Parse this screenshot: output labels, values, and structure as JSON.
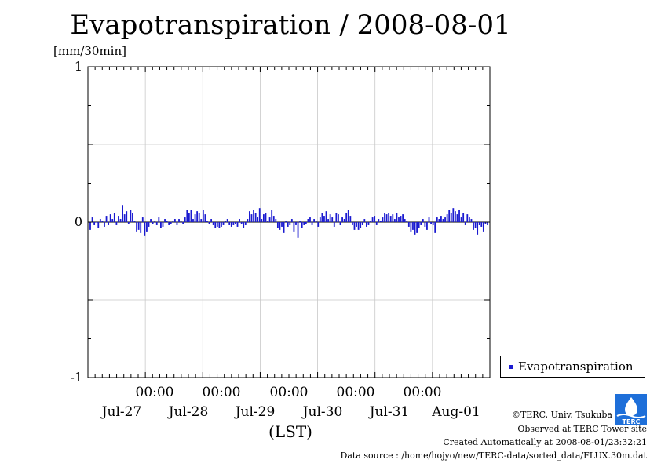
{
  "page": {
    "title": "Evapotranspiration / 2008-08-01",
    "unit": "[mm/30min]",
    "x_axis_note": "(LST)"
  },
  "chart_data": {
    "type": "bar",
    "title": "Evapotranspiration / 2008-08-01",
    "ylabel": "[mm/30min]",
    "xlabel": "(LST)",
    "ylim": [
      -1,
      1
    ],
    "yticks": [
      "1",
      "0",
      "-1"
    ],
    "xlim": [
      "2008-07-26T00:00",
      "2008-08-02T00:00"
    ],
    "time_ticks": [
      "00:00",
      "00:00",
      "00:00",
      "00:00",
      "00:00"
    ],
    "date_ticks": [
      "Jul-27",
      "Jul-28",
      "Jul-29",
      "Jul-30",
      "Jul-31",
      "Aug-01"
    ],
    "grid": true,
    "legend_position": "bottom-right outside",
    "series": [
      {
        "name": "Evapotranspiration",
        "color": "#1a1ad0",
        "values": [
          -0.05,
          0.03,
          -0.02,
          0.0,
          -0.04,
          0.02,
          0.01,
          -0.03,
          0.04,
          -0.02,
          0.05,
          0.02,
          0.06,
          -0.02,
          0.04,
          0.02,
          0.11,
          0.05,
          0.07,
          -0.01,
          0.08,
          0.06,
          0.01,
          -0.06,
          -0.05,
          -0.07,
          0.03,
          -0.09,
          -0.06,
          -0.03,
          0.02,
          -0.01,
          0.01,
          -0.02,
          0.03,
          -0.04,
          -0.03,
          0.02,
          0.01,
          -0.02,
          -0.01,
          0.01,
          0.02,
          -0.02,
          0.02,
          0.01,
          -0.01,
          0.03,
          0.08,
          0.06,
          0.08,
          0.02,
          0.05,
          0.07,
          0.06,
          0.02,
          0.08,
          0.05,
          0.01,
          -0.01,
          0.02,
          -0.02,
          -0.04,
          -0.03,
          -0.04,
          -0.03,
          -0.02,
          0.01,
          0.02,
          -0.02,
          -0.03,
          -0.02,
          -0.01,
          -0.03,
          0.02,
          -0.01,
          -0.04,
          -0.02,
          0.02,
          0.07,
          0.05,
          0.08,
          0.06,
          0.03,
          0.09,
          0.02,
          0.05,
          0.06,
          0.01,
          0.03,
          0.08,
          0.04,
          0.02,
          -0.04,
          -0.05,
          -0.03,
          -0.07,
          0.01,
          -0.03,
          -0.02,
          0.02,
          -0.06,
          -0.02,
          -0.1,
          0.01,
          -0.04,
          -0.02,
          -0.01,
          0.02,
          0.03,
          -0.02,
          0.02,
          0.01,
          -0.03,
          0.03,
          0.06,
          0.04,
          0.07,
          0.02,
          0.05,
          0.03,
          -0.03,
          0.06,
          0.05,
          -0.02,
          0.03,
          0.02,
          0.06,
          0.08,
          0.04,
          -0.02,
          -0.05,
          -0.03,
          -0.05,
          -0.04,
          -0.02,
          0.02,
          -0.03,
          -0.02,
          0.01,
          0.03,
          0.04,
          -0.02,
          0.02,
          0.01,
          0.03,
          0.06,
          0.05,
          0.06,
          0.04,
          0.05,
          0.02,
          0.06,
          0.03,
          0.04,
          0.05,
          0.02,
          0.01,
          -0.03,
          -0.06,
          -0.05,
          -0.08,
          -0.07,
          -0.04,
          -0.02,
          0.02,
          -0.03,
          -0.05,
          0.03,
          -0.01,
          -0.02,
          -0.07,
          0.03,
          0.02,
          0.04,
          0.02,
          0.03,
          0.05,
          0.08,
          0.06,
          0.09,
          0.07,
          0.05,
          0.08,
          0.03,
          0.06,
          -0.02,
          0.05,
          0.03,
          0.02,
          -0.05,
          -0.04,
          -0.08,
          -0.02,
          -0.03,
          -0.06,
          -0.01,
          -0.02
        ]
      }
    ]
  },
  "legend": {
    "label": "Evapotranspiration",
    "color": "#1a1ad0"
  },
  "credits": {
    "line1": "©TERC, Univ. Tsukuba",
    "line2": "Observed at TERC Tower site",
    "line3": "Created Automatically at 2008-08-01/23:32:21",
    "line4": "Data source : /home/hojyo/new/TERC-data/sorted_data/FLUX.30m.dat"
  },
  "logo": {
    "text": "TERC",
    "color": "#1e6fd9"
  }
}
